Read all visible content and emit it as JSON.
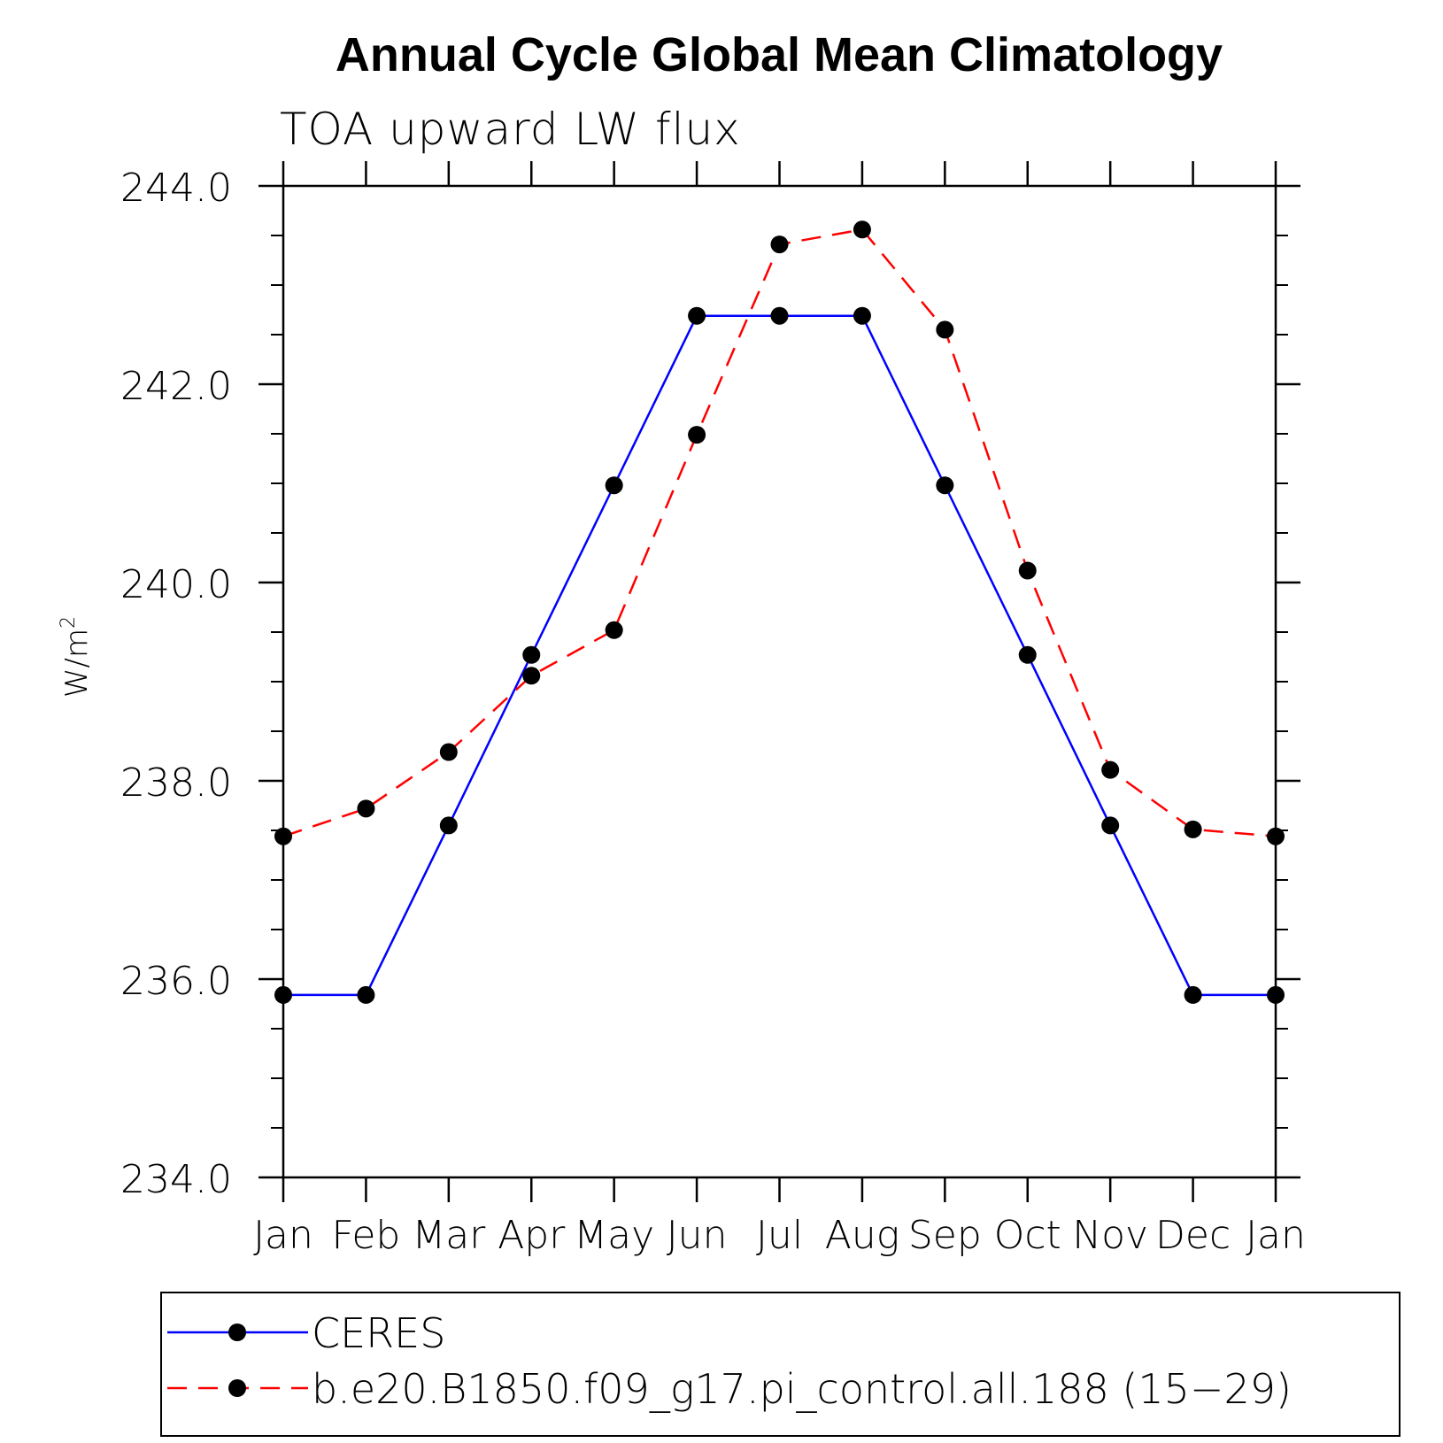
{
  "chart_data": {
    "type": "line",
    "title": "Annual Cycle Global Mean Climatology",
    "subtitle": "TOA upward LW flux",
    "ylabel": "W/m",
    "ylabel_sup": "2",
    "xlabel": "",
    "categories": [
      "Jan",
      "Feb",
      "Mar",
      "Apr",
      "May",
      "Jun",
      "Jul",
      "Aug",
      "Sep",
      "Oct",
      "Nov",
      "Dec",
      "Jan"
    ],
    "ylim": [
      234.0,
      244.0
    ],
    "yticks": [
      "234.0",
      "236.0",
      "238.0",
      "240.0",
      "242.0",
      "244.0"
    ],
    "series": [
      {
        "name": "CERES",
        "color": "#0000ff",
        "dash": "solid",
        "values": [
          235.84,
          235.84,
          237.55,
          239.27,
          240.98,
          242.69,
          242.69,
          242.69,
          240.98,
          239.27,
          237.55,
          235.84,
          235.84
        ]
      },
      {
        "name": "b.e20.B1850.f09_g17.pi_control.all.188 (15−29)",
        "color": "#ff0000",
        "dash": "dashed",
        "values": [
          237.44,
          237.72,
          238.29,
          239.06,
          239.52,
          241.49,
          243.41,
          243.56,
          242.55,
          240.12,
          238.11,
          237.51,
          237.44
        ]
      }
    ],
    "grid": false,
    "legend_position": "bottom"
  }
}
